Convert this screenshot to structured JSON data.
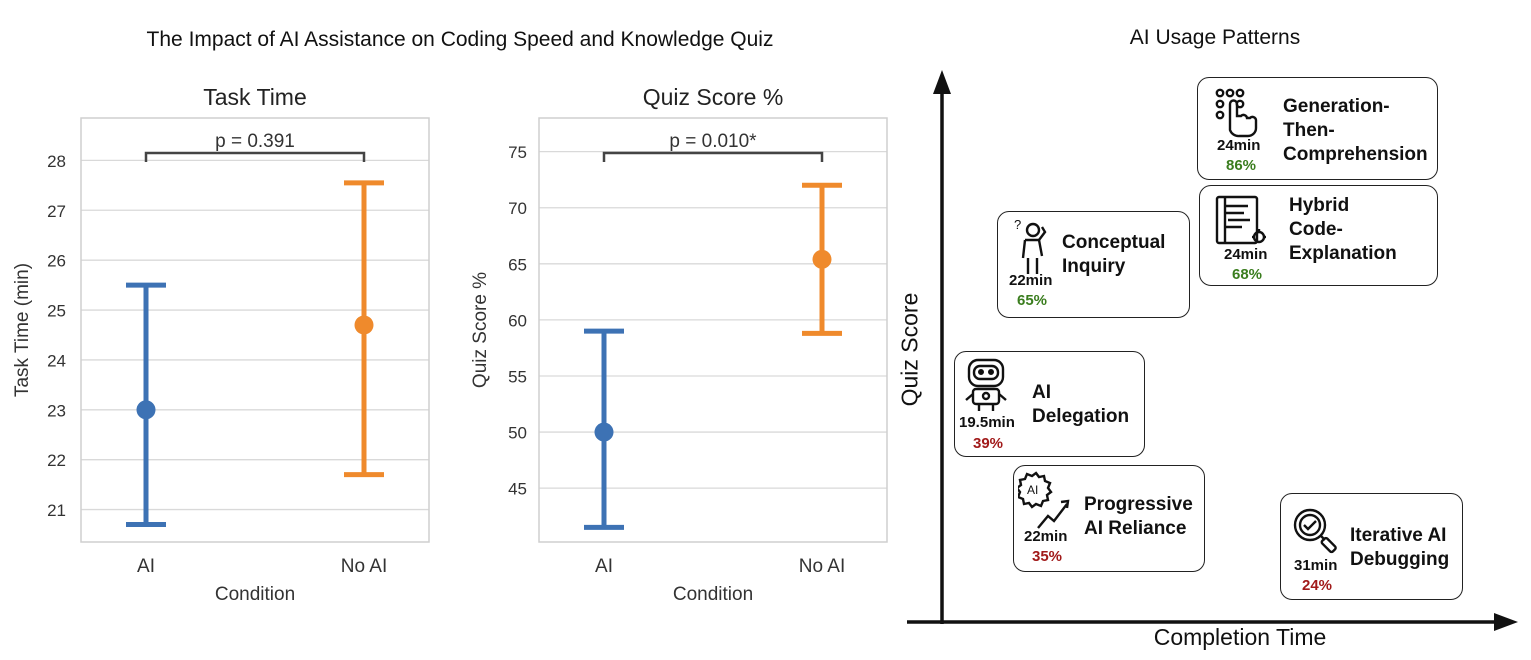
{
  "figure_title": "The Impact of AI Assistance on Coding Speed and Knowledge Quiz",
  "colors": {
    "ai": "#3d72b4",
    "no_ai": "#ef8a2c",
    "good": "#3a7d1e",
    "bad": "#a11a1a"
  },
  "chart_data": [
    {
      "type": "errorbar",
      "title": "Task Time",
      "xlabel": "Condition",
      "ylabel": "Task Time (min)",
      "categories": [
        "AI",
        "No AI"
      ],
      "values": [
        23.0,
        24.7
      ],
      "lower": [
        20.7,
        21.7
      ],
      "upper": [
        25.5,
        27.55
      ],
      "yticks": [
        21,
        22,
        23,
        24,
        25,
        26,
        27,
        28
      ],
      "ylim": [
        20.35,
        28.85
      ],
      "annotation": "p = 0.391",
      "grid": true
    },
    {
      "type": "errorbar",
      "title": "Quiz Score %",
      "xlabel": "Condition",
      "ylabel": "Quiz Score %",
      "categories": [
        "AI",
        "No AI"
      ],
      "values": [
        50.0,
        65.4
      ],
      "lower": [
        41.5,
        58.8
      ],
      "upper": [
        59.0,
        72.0
      ],
      "yticks": [
        45,
        50,
        55,
        60,
        65,
        70,
        75
      ],
      "ylim": [
        40.2,
        78.0
      ],
      "annotation": "p = 0.010*",
      "grid": true
    }
  ],
  "patterns": {
    "title": "AI Usage Patterns",
    "xlabel": "Completion Time",
    "ylabel": "Quiz Score",
    "items": [
      {
        "id": "generation",
        "name": "Generation-Then-Comprehension",
        "lines": [
          "Generation-",
          "Then-",
          "Comprehension"
        ],
        "time": "24min",
        "score": "86%",
        "quality": "good",
        "icon": "hand-tap-icon"
      },
      {
        "id": "hybrid",
        "name": "Hybrid Code-Explanation",
        "lines": [
          "Hybrid",
          "Code-",
          "Explanation"
        ],
        "time": "24min",
        "score": "68%",
        "quality": "good",
        "icon": "code-doc-icon"
      },
      {
        "id": "conceptual",
        "name": "Conceptual Inquiry",
        "lines": [
          "Conceptual",
          "Inquiry"
        ],
        "time": "22min",
        "score": "65%",
        "quality": "good",
        "icon": "thinking-person-icon"
      },
      {
        "id": "delegation",
        "name": "AI Delegation",
        "lines": [
          "AI",
          "Delegation"
        ],
        "time": "19.5min",
        "score": "39%",
        "quality": "bad",
        "icon": "robot-icon"
      },
      {
        "id": "progressive",
        "name": "Progressive AI Reliance",
        "lines": [
          "Progressive",
          "AI Reliance"
        ],
        "time": "22min",
        "score": "35%",
        "quality": "bad",
        "icon": "ai-gear-trend-icon"
      },
      {
        "id": "iterative",
        "name": "Iterative AI Debugging",
        "lines": [
          "Iterative AI",
          "Debugging"
        ],
        "time": "31min",
        "score": "24%",
        "quality": "bad",
        "icon": "magnifier-check-icon"
      }
    ]
  }
}
